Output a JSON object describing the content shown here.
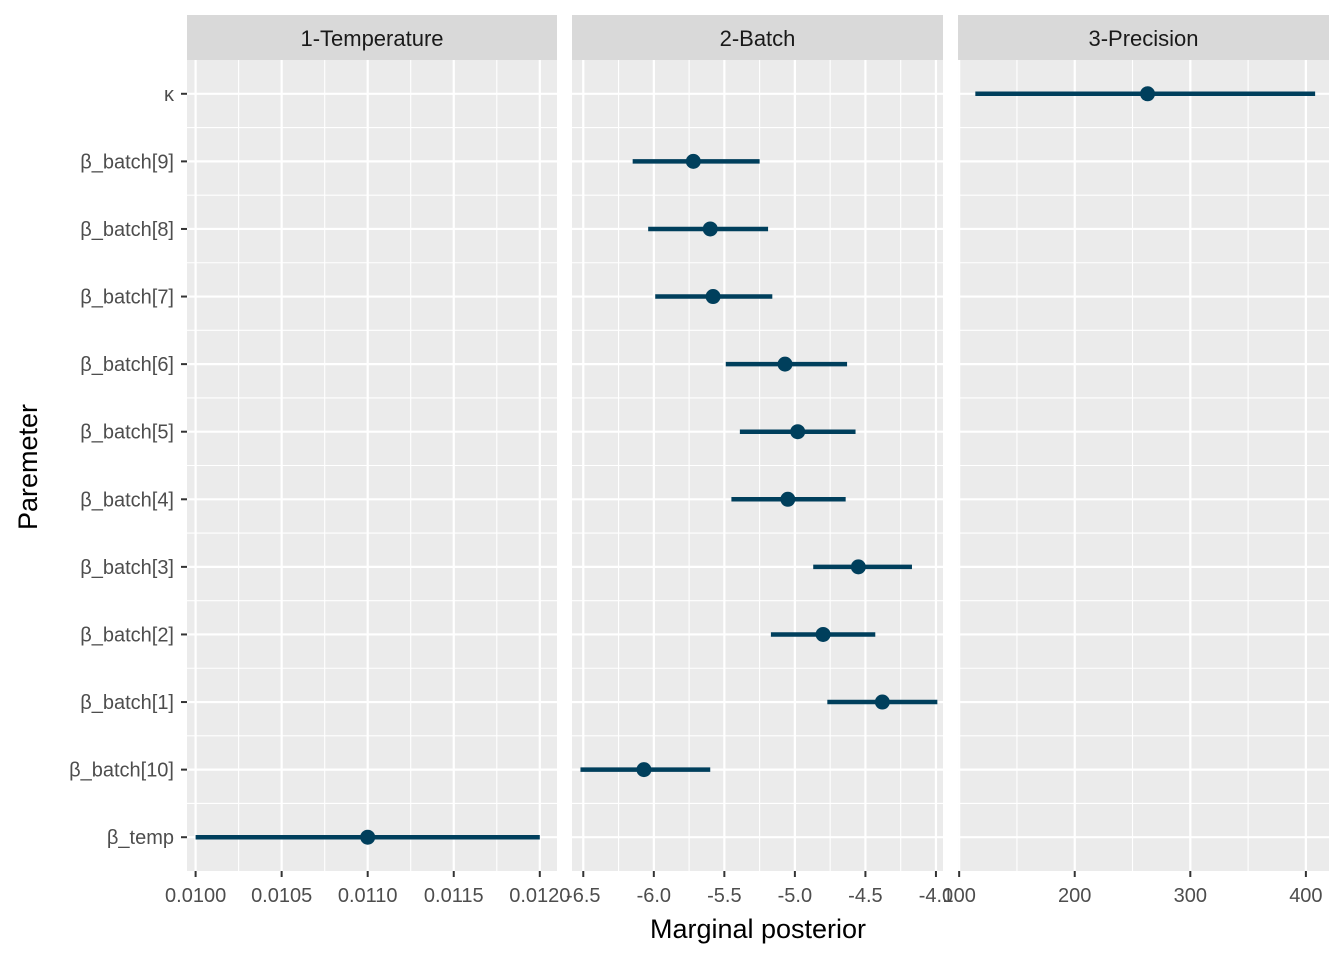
{
  "chart_data": {
    "type": "dot-interval",
    "xlabel": "Marginal posterior",
    "ylabel": "Paremeter",
    "parameters": [
      "β_temp",
      "β_batch[10]",
      "β_batch[1]",
      "β_batch[2]",
      "β_batch[3]",
      "β_batch[4]",
      "β_batch[5]",
      "β_batch[6]",
      "β_batch[7]",
      "β_batch[8]",
      "β_batch[9]",
      "κ"
    ],
    "point_color": "#003f5c",
    "panel_background": "#ebebeb",
    "strip_background": "#d9d9d9",
    "grid": true,
    "facets": [
      {
        "label": "1-Temperature",
        "xlim": [
          0.00995,
          0.0121
        ],
        "ticks": [
          0.01,
          0.0105,
          0.011,
          0.0115,
          0.012
        ],
        "tick_labels": [
          "0.0100",
          "0.0105",
          "0.0110",
          "0.0115",
          "0.0120"
        ],
        "points": [
          {
            "param": "β_temp",
            "mean": 0.011,
            "low": 0.01,
            "high": 0.012
          }
        ]
      },
      {
        "label": "2-Batch",
        "xlim": [
          -6.58,
          -3.95
        ],
        "ticks": [
          -6.5,
          -6.0,
          -5.5,
          -5.0,
          -4.5,
          -4.0
        ],
        "tick_labels": [
          "-6.5",
          "-6.0",
          "-5.5",
          "-5.0",
          "-4.5",
          "-4.0"
        ],
        "points": [
          {
            "param": "β_batch[10]",
            "mean": -6.07,
            "low": -6.52,
            "high": -5.6
          },
          {
            "param": "β_batch[1]",
            "mean": -4.38,
            "low": -4.77,
            "high": -3.99
          },
          {
            "param": "β_batch[2]",
            "mean": -4.8,
            "low": -5.17,
            "high": -4.43
          },
          {
            "param": "β_batch[3]",
            "mean": -4.55,
            "low": -4.87,
            "high": -4.17
          },
          {
            "param": "β_batch[4]",
            "mean": -5.05,
            "low": -5.45,
            "high": -4.64
          },
          {
            "param": "β_batch[5]",
            "mean": -4.98,
            "low": -5.39,
            "high": -4.57
          },
          {
            "param": "β_batch[6]",
            "mean": -5.07,
            "low": -5.49,
            "high": -4.63
          },
          {
            "param": "β_batch[7]",
            "mean": -5.58,
            "low": -5.99,
            "high": -5.16
          },
          {
            "param": "β_batch[8]",
            "mean": -5.6,
            "low": -6.04,
            "high": -5.19
          },
          {
            "param": "β_batch[9]",
            "mean": -5.72,
            "low": -6.15,
            "high": -5.25
          }
        ]
      },
      {
        "label": "3-Precision",
        "xlim": [
          99,
          420
        ],
        "ticks": [
          100,
          200,
          300,
          400
        ],
        "tick_labels": [
          "100",
          "200",
          "300",
          "400"
        ],
        "points": [
          {
            "param": "κ",
            "mean": 263,
            "low": 114,
            "high": 408
          }
        ]
      }
    ]
  }
}
